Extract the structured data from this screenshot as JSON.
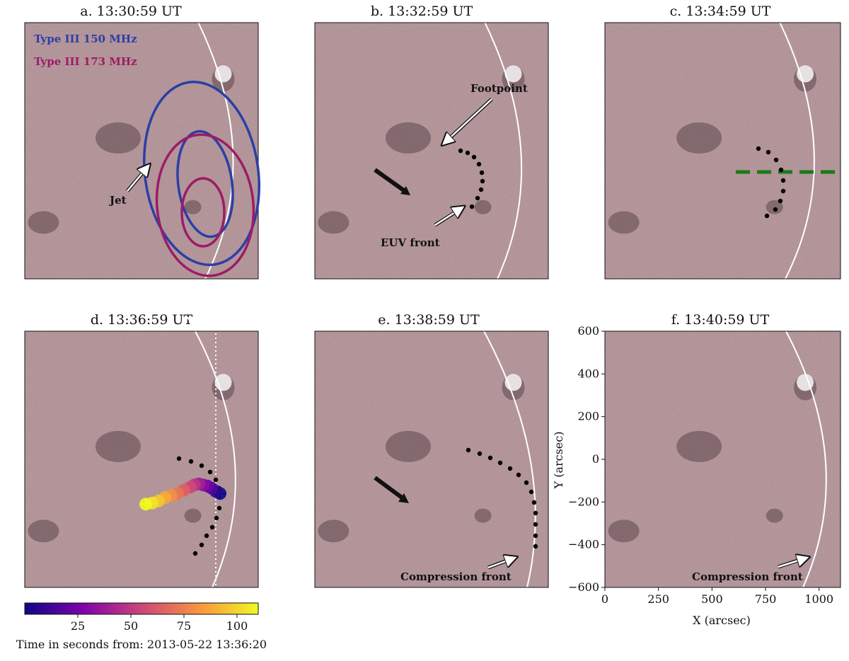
{
  "chart_data": {
    "type": "other",
    "panels": [
      {
        "id": "a",
        "title": "a. 13:30:59 UT",
        "annotations": [
          "Jet"
        ],
        "legend": [
          "Type III 150 MHz",
          "Type III 173 MHz"
        ],
        "legend_colors": [
          "#2b3fa6",
          "#9c1c66"
        ]
      },
      {
        "id": "b",
        "title": "b. 13:32:59 UT",
        "annotations": [
          "Footpoint",
          "EUV front"
        ]
      },
      {
        "id": "c",
        "title": "c. 13:34:59 UT",
        "annotations": []
      },
      {
        "id": "d",
        "title": "d. 13:36:59 UT",
        "annotations": []
      },
      {
        "id": "e",
        "title": "e. 13:38:59 UT",
        "annotations": [
          "Compression front"
        ]
      },
      {
        "id": "f",
        "title": "f. 13:40:59 UT",
        "annotations": [
          "Compression front"
        ]
      }
    ],
    "axes": {
      "xlabel": "X (arcsec)",
      "ylabel": "Y (arcsec)",
      "xlim": [
        0,
        1100
      ],
      "ylim": [
        -600,
        600
      ],
      "xticks": [
        "0",
        "250",
        "500",
        "750",
        "1000"
      ],
      "yticks": [
        "600",
        "400",
        "200",
        "0",
        "−200",
        "−400",
        "−600"
      ]
    },
    "colorbar": {
      "colormap": "plasma",
      "range": [
        0,
        110
      ],
      "ticks": [
        "25",
        "50",
        "75",
        "100"
      ],
      "label": "Time in seconds from: 2013-05-22 13:36:20"
    },
    "type3_sources_d": [
      {
        "t": 0,
        "x": 920,
        "y": -160
      },
      {
        "t": 8,
        "x": 900,
        "y": -150
      },
      {
        "t": 16,
        "x": 880,
        "y": -135
      },
      {
        "t": 24,
        "x": 860,
        "y": -125
      },
      {
        "t": 32,
        "x": 840,
        "y": -120
      },
      {
        "t": 40,
        "x": 820,
        "y": -115
      },
      {
        "t": 48,
        "x": 800,
        "y": -120
      },
      {
        "t": 56,
        "x": 780,
        "y": -130
      },
      {
        "t": 64,
        "x": 750,
        "y": -145
      },
      {
        "t": 72,
        "x": 720,
        "y": -160
      },
      {
        "t": 80,
        "x": 690,
        "y": -170
      },
      {
        "t": 88,
        "x": 660,
        "y": -180
      },
      {
        "t": 96,
        "x": 630,
        "y": -195
      },
      {
        "t": 104,
        "x": 600,
        "y": -205
      },
      {
        "t": 110,
        "x": 570,
        "y": -210
      }
    ],
    "colors": {
      "background": "#b08a90",
      "contour_150": "#2b3fa6",
      "contour_173": "#9c1c66",
      "guide": "#1a7a18"
    }
  }
}
